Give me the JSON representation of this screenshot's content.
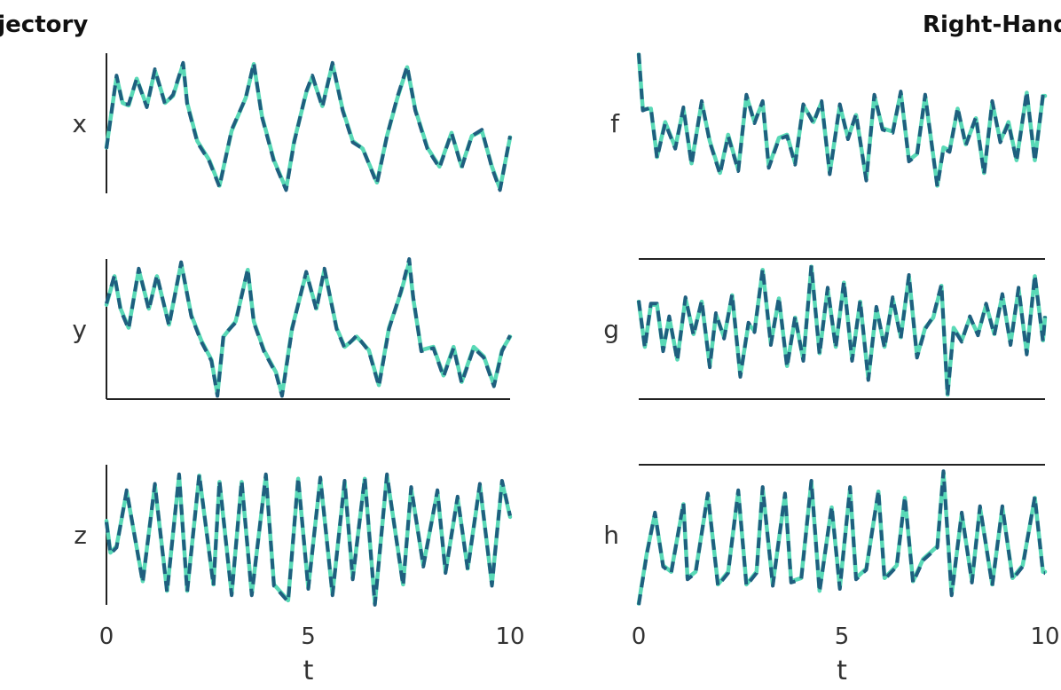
{
  "colors": {
    "true_line": "#1f5f7f",
    "pred_line": "#59d9b6",
    "axis": "#222222",
    "text": "#333333"
  },
  "chart_data": [
    {
      "type": "line",
      "title": "Trajectory",
      "panels": [
        {
          "ylabel": "x",
          "xlim": [
            0,
            10
          ],
          "ylim": [
            -1.1,
            1.1
          ],
          "frame": "left",
          "x": [
            0,
            0.25,
            0.4,
            0.55,
            0.75,
            1.0,
            1.2,
            1.45,
            1.65,
            1.9,
            2.0,
            2.25,
            2.55,
            2.8,
            3.1,
            3.45,
            3.65,
            3.85,
            4.15,
            4.45,
            4.65,
            4.95,
            5.1,
            5.35,
            5.6,
            5.85,
            6.1,
            6.35,
            6.7,
            6.95,
            7.2,
            7.45,
            7.65,
            7.95,
            8.25,
            8.55,
            8.8,
            9.05,
            9.3,
            9.55,
            9.75,
            10.0
          ],
          "true": [
            -0.4,
            0.75,
            0.3,
            0.3,
            0.7,
            0.25,
            0.85,
            0.3,
            0.45,
            0.95,
            0.3,
            -0.3,
            -0.6,
            -1.0,
            -0.1,
            0.4,
            0.95,
            0.1,
            -0.6,
            -1.05,
            -0.3,
            0.5,
            0.75,
            0.25,
            0.95,
            0.2,
            -0.3,
            -0.4,
            -0.95,
            -0.2,
            0.4,
            0.9,
            0.2,
            -0.4,
            -0.7,
            -0.15,
            -0.7,
            -0.2,
            -0.1,
            -0.7,
            -1.05,
            -0.2
          ],
          "pred": [
            -0.38,
            0.73,
            0.32,
            0.28,
            0.7,
            0.27,
            0.83,
            0.32,
            0.43,
            0.93,
            0.32,
            -0.28,
            -0.58,
            -0.98,
            -0.12,
            0.4,
            0.93,
            0.12,
            -0.58,
            -1.03,
            -0.28,
            0.48,
            0.73,
            0.27,
            0.93,
            0.22,
            -0.28,
            -0.4,
            -0.93,
            -0.2,
            0.38,
            0.88,
            0.22,
            -0.38,
            -0.68,
            -0.15,
            -0.68,
            -0.2,
            -0.12,
            -0.68,
            -1.03,
            -0.22
          ]
        },
        {
          "ylabel": "y",
          "xlim": [
            0,
            10
          ],
          "ylim": [
            -1.1,
            1.1
          ],
          "frame": "left-bottom",
          "x": [
            0,
            0.2,
            0.35,
            0.55,
            0.8,
            1.05,
            1.25,
            1.55,
            1.85,
            2.1,
            2.35,
            2.6,
            2.75,
            2.9,
            3.2,
            3.5,
            3.65,
            3.9,
            4.2,
            4.35,
            4.6,
            4.95,
            5.2,
            5.4,
            5.7,
            5.9,
            6.2,
            6.5,
            6.75,
            7.0,
            7.3,
            7.5,
            7.6,
            7.8,
            8.1,
            8.35,
            8.6,
            8.8,
            9.1,
            9.35,
            9.6,
            9.8,
            10.0
          ],
          "true": [
            0.4,
            0.85,
            0.3,
            0.0,
            0.95,
            0.3,
            0.85,
            0.05,
            1.05,
            0.2,
            -0.2,
            -0.5,
            -1.05,
            -0.1,
            0.1,
            0.95,
            0.1,
            -0.35,
            -0.7,
            -1.05,
            0.0,
            0.9,
            0.3,
            0.95,
            0.0,
            -0.3,
            -0.1,
            -0.35,
            -0.9,
            0.0,
            0.6,
            1.1,
            0.5,
            -0.35,
            -0.3,
            -0.75,
            -0.3,
            -0.85,
            -0.3,
            -0.45,
            -0.9,
            -0.35,
            -0.1
          ],
          "pred": [
            0.38,
            0.83,
            0.32,
            0.02,
            0.93,
            0.32,
            0.83,
            0.07,
            1.03,
            0.22,
            -0.18,
            -0.48,
            -1.03,
            -0.12,
            0.12,
            0.93,
            0.12,
            -0.33,
            -0.68,
            -1.03,
            0.02,
            0.88,
            0.32,
            0.93,
            0.02,
            -0.28,
            -0.12,
            -0.33,
            -0.88,
            0.02,
            0.58,
            1.05,
            0.48,
            -0.33,
            -0.28,
            -0.73,
            -0.28,
            -0.83,
            -0.28,
            -0.43,
            -0.88,
            -0.33,
            -0.12
          ]
        },
        {
          "ylabel": "z",
          "xlim": [
            0,
            10
          ],
          "ylim": [
            -1.1,
            1.1
          ],
          "frame": "left",
          "x": [
            0,
            0.1,
            0.25,
            0.5,
            0.9,
            1.2,
            1.5,
            1.8,
            2.0,
            2.3,
            2.65,
            2.8,
            3.1,
            3.35,
            3.6,
            3.95,
            4.15,
            4.5,
            4.75,
            5.0,
            5.3,
            5.6,
            5.9,
            6.1,
            6.4,
            6.65,
            6.95,
            7.35,
            7.55,
            7.85,
            8.2,
            8.4,
            8.7,
            8.95,
            9.25,
            9.55,
            9.8,
            10.0
          ],
          "true": [
            0.2,
            -0.3,
            -0.2,
            0.7,
            -0.75,
            0.8,
            -0.9,
            0.95,
            -0.9,
            0.95,
            -0.8,
            0.85,
            -0.95,
            0.85,
            -0.95,
            0.95,
            -0.8,
            -1.05,
            0.9,
            -0.85,
            0.9,
            -0.95,
            0.85,
            -0.7,
            0.9,
            -1.1,
            0.95,
            -0.8,
            0.75,
            -0.5,
            0.7,
            -0.6,
            0.6,
            -0.55,
            0.8,
            -0.8,
            0.85,
            0.3
          ],
          "pred": [
            0.22,
            -0.28,
            -0.18,
            0.68,
            -0.73,
            0.78,
            -0.88,
            0.93,
            -0.88,
            0.93,
            -0.78,
            0.83,
            -0.93,
            0.83,
            -0.93,
            0.93,
            -0.78,
            -1.03,
            0.88,
            -0.83,
            0.88,
            -0.93,
            0.83,
            -0.68,
            0.88,
            -1.08,
            0.93,
            -0.78,
            0.73,
            -0.48,
            0.68,
            -0.58,
            0.58,
            -0.53,
            0.78,
            -0.78,
            0.83,
            0.28
          ]
        }
      ],
      "xticks": [
        0,
        5,
        10
      ],
      "xticklabels": [
        "0",
        "5",
        "10"
      ],
      "xlabel": "t",
      "grid": false
    },
    {
      "type": "line",
      "title": "Right-Hand Side",
      "panels": [
        {
          "ylabel": "f",
          "xlim": [
            0,
            10
          ],
          "ylim": [
            -1.1,
            1.1
          ],
          "frame": "none",
          "x": [
            0,
            0.1,
            0.3,
            0.45,
            0.65,
            0.9,
            1.1,
            1.3,
            1.55,
            1.75,
            2.0,
            2.2,
            2.45,
            2.65,
            2.85,
            3.05,
            3.2,
            3.45,
            3.65,
            3.85,
            4.05,
            4.3,
            4.5,
            4.7,
            4.95,
            5.15,
            5.35,
            5.6,
            5.8,
            6.0,
            6.25,
            6.45,
            6.65,
            6.85,
            7.05,
            7.35,
            7.5,
            7.65,
            7.85,
            8.05,
            8.3,
            8.5,
            8.7,
            8.9,
            9.1,
            9.3,
            9.55,
            9.75,
            9.95,
            10.0
          ],
          "true": [
            1.1,
            0.2,
            0.25,
            -0.55,
            0.0,
            -0.4,
            0.25,
            -0.65,
            0.35,
            -0.3,
            -0.8,
            -0.2,
            -0.75,
            0.45,
            0.0,
            0.35,
            -0.7,
            -0.25,
            -0.2,
            -0.65,
            0.3,
            0.0,
            0.35,
            -0.8,
            0.3,
            -0.25,
            0.15,
            -0.9,
            0.45,
            -0.1,
            -0.15,
            0.5,
            -0.6,
            -0.5,
            0.45,
            -1.0,
            -0.4,
            -0.45,
            0.25,
            -0.35,
            0.1,
            -0.8,
            0.35,
            -0.3,
            0.0,
            -0.6,
            0.5,
            -0.6,
            0.45,
            0.45
          ],
          "pred": [
            1.08,
            0.22,
            0.23,
            -0.53,
            0.02,
            -0.38,
            0.23,
            -0.63,
            0.33,
            -0.28,
            -0.78,
            -0.18,
            -0.73,
            0.43,
            0.02,
            0.33,
            -0.68,
            -0.23,
            -0.18,
            -0.63,
            0.28,
            0.02,
            0.33,
            -0.78,
            0.28,
            -0.23,
            0.13,
            -0.88,
            0.43,
            -0.08,
            -0.13,
            0.48,
            -0.58,
            -0.48,
            0.43,
            -0.98,
            -0.38,
            -0.43,
            0.23,
            -0.33,
            0.08,
            -0.78,
            0.33,
            -0.28,
            0.02,
            -0.58,
            0.48,
            -0.58,
            0.43,
            0.43
          ]
        },
        {
          "ylabel": "g",
          "xlim": [
            0,
            10
          ],
          "ylim": [
            -1.1,
            1.1
          ],
          "frame": "top-bottom",
          "x": [
            0,
            0.15,
            0.3,
            0.45,
            0.6,
            0.75,
            0.95,
            1.15,
            1.35,
            1.55,
            1.75,
            1.9,
            2.1,
            2.3,
            2.5,
            2.7,
            2.85,
            3.05,
            3.25,
            3.45,
            3.65,
            3.85,
            4.05,
            4.25,
            4.45,
            4.65,
            4.85,
            5.05,
            5.25,
            5.45,
            5.65,
            5.85,
            6.05,
            6.25,
            6.45,
            6.65,
            6.85,
            7.05,
            7.25,
            7.45,
            7.6,
            7.75,
            7.95,
            8.15,
            8.35,
            8.55,
            8.75,
            8.95,
            9.15,
            9.35,
            9.55,
            9.75,
            9.95,
            10.0
          ],
          "true": [
            0.45,
            -0.3,
            0.4,
            0.4,
            -0.35,
            0.2,
            -0.5,
            0.5,
            -0.1,
            0.45,
            -0.6,
            0.25,
            -0.15,
            0.55,
            -0.75,
            0.1,
            -0.05,
            0.95,
            -0.25,
            0.5,
            -0.6,
            0.2,
            -0.5,
            1.0,
            -0.4,
            0.65,
            -0.3,
            0.75,
            -0.5,
            0.45,
            -0.8,
            0.35,
            -0.3,
            0.5,
            -0.15,
            0.85,
            -0.45,
            0.0,
            0.2,
            0.7,
            -1.05,
            0.0,
            -0.2,
            0.2,
            -0.1,
            0.4,
            -0.1,
            0.55,
            -0.25,
            0.65,
            -0.4,
            0.85,
            -0.2,
            0.2
          ],
          "pred": [
            0.43,
            -0.28,
            0.38,
            0.38,
            -0.33,
            0.18,
            -0.48,
            0.48,
            -0.08,
            0.43,
            -0.58,
            0.23,
            -0.13,
            0.53,
            -0.73,
            0.08,
            -0.03,
            0.93,
            -0.23,
            0.48,
            -0.58,
            0.18,
            -0.48,
            0.98,
            -0.38,
            0.63,
            -0.28,
            0.73,
            -0.48,
            0.43,
            -0.78,
            0.33,
            -0.28,
            0.48,
            -0.13,
            0.83,
            -0.43,
            0.02,
            0.18,
            0.68,
            -1.03,
            0.02,
            -0.18,
            0.18,
            -0.08,
            0.38,
            -0.08,
            0.53,
            -0.23,
            0.63,
            -0.38,
            0.83,
            -0.18,
            0.18
          ]
        },
        {
          "ylabel": "h",
          "xlim": [
            0,
            10
          ],
          "ylim": [
            -1.1,
            1.1
          ],
          "frame": "top",
          "x": [
            0,
            0.2,
            0.4,
            0.6,
            0.8,
            1.1,
            1.2,
            1.4,
            1.7,
            1.95,
            2.2,
            2.45,
            2.65,
            2.9,
            3.05,
            3.3,
            3.6,
            3.75,
            4.0,
            4.25,
            4.45,
            4.75,
            4.95,
            5.2,
            5.35,
            5.6,
            5.9,
            6.05,
            6.35,
            6.55,
            6.75,
            7.0,
            7.35,
            7.5,
            7.7,
            7.95,
            8.2,
            8.4,
            8.7,
            8.95,
            9.2,
            9.45,
            9.75,
            9.95,
            10.0
          ],
          "true": [
            -1.1,
            -0.3,
            0.35,
            -0.5,
            -0.6,
            0.5,
            -0.7,
            -0.6,
            0.65,
            -0.8,
            -0.6,
            0.7,
            -0.8,
            -0.6,
            0.75,
            -0.8,
            0.65,
            -0.75,
            -0.7,
            0.85,
            -0.9,
            0.45,
            -0.85,
            0.75,
            -0.7,
            -0.55,
            0.7,
            -0.7,
            -0.5,
            0.6,
            -0.75,
            -0.4,
            -0.2,
            1.0,
            -0.95,
            0.35,
            -0.75,
            0.45,
            -0.8,
            0.45,
            -0.7,
            -0.5,
            0.6,
            -0.6,
            -0.6
          ],
          "pred": [
            -1.08,
            -0.28,
            0.33,
            -0.48,
            -0.58,
            0.48,
            -0.68,
            -0.58,
            0.63,
            -0.78,
            -0.58,
            0.68,
            -0.78,
            -0.58,
            0.73,
            -0.78,
            0.63,
            -0.73,
            -0.68,
            0.83,
            -0.88,
            0.43,
            -0.83,
            0.73,
            -0.68,
            -0.53,
            0.68,
            -0.68,
            -0.48,
            0.58,
            -0.73,
            -0.38,
            -0.18,
            0.98,
            -0.93,
            0.33,
            -0.73,
            0.43,
            -0.78,
            0.43,
            -0.68,
            -0.48,
            0.58,
            -0.58,
            -0.58
          ]
        }
      ],
      "xticks": [
        0,
        5,
        10
      ],
      "xticklabels": [
        "0",
        "5",
        "10"
      ],
      "xlabel": "t",
      "grid": false
    }
  ]
}
